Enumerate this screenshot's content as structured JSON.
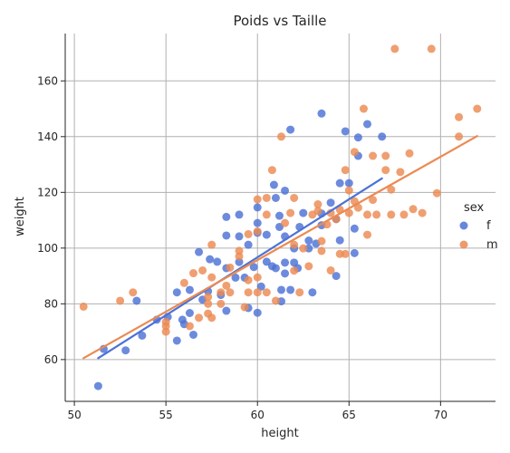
{
  "chart_data": {
    "type": "scatter",
    "title": "Poids vs Taille",
    "xlabel": "height",
    "ylabel": "weight",
    "xlim": [
      49.5,
      73
    ],
    "ylim": [
      45,
      177
    ],
    "xticks": [
      50,
      55,
      60,
      65,
      70
    ],
    "yticks": [
      60,
      80,
      100,
      120,
      140,
      160
    ],
    "grid": true,
    "legend": {
      "title": "sex",
      "placement": "right"
    },
    "series": [
      {
        "name": "f",
        "color": "#4c72d6",
        "regression": {
          "x": [
            51.3,
            66.8
          ],
          "y": [
            60.5,
            125.0
          ]
        },
        "points": [
          [
            51.3,
            50.5
          ],
          [
            51.6,
            63.8
          ],
          [
            52.8,
            63.3
          ],
          [
            53.4,
            81.1
          ],
          [
            53.7,
            68.6
          ],
          [
            54.5,
            74.3
          ],
          [
            55.1,
            75.3
          ],
          [
            55.6,
            66.8
          ],
          [
            55.6,
            84.1
          ],
          [
            55.9,
            74.3
          ],
          [
            56.0,
            72.7
          ],
          [
            56.3,
            76.7
          ],
          [
            56.3,
            85.0
          ],
          [
            56.5,
            68.9
          ],
          [
            56.8,
            98.6
          ],
          [
            57.0,
            81.5
          ],
          [
            57.3,
            84.5
          ],
          [
            57.4,
            96.0
          ],
          [
            57.8,
            95.1
          ],
          [
            58.0,
            83.2
          ],
          [
            58.3,
            77.5
          ],
          [
            58.3,
            92.8
          ],
          [
            58.3,
            104.5
          ],
          [
            58.3,
            111.2
          ],
          [
            58.8,
            89.4
          ],
          [
            59.0,
            95.0
          ],
          [
            59.0,
            104.2
          ],
          [
            59.0,
            112.0
          ],
          [
            59.3,
            89.4
          ],
          [
            59.5,
            101.2
          ],
          [
            59.5,
            78.5
          ],
          [
            59.8,
            93.2
          ],
          [
            60.0,
            114.6
          ],
          [
            60.0,
            109.0
          ],
          [
            60.0,
            105.5
          ],
          [
            60.0,
            76.8
          ],
          [
            60.2,
            86.2
          ],
          [
            60.5,
            104.8
          ],
          [
            60.5,
            95.1
          ],
          [
            60.8,
            93.5
          ],
          [
            60.9,
            122.7
          ],
          [
            61.0,
            92.8
          ],
          [
            61.0,
            118.0
          ],
          [
            61.2,
            111.6
          ],
          [
            61.2,
            107.6
          ],
          [
            61.3,
            85.0
          ],
          [
            61.3,
            80.9
          ],
          [
            61.5,
            94.8
          ],
          [
            61.5,
            104.2
          ],
          [
            61.5,
            120.6
          ],
          [
            61.5,
            90.9
          ],
          [
            61.8,
            142.5
          ],
          [
            61.8,
            85.0
          ],
          [
            62.0,
            94.8
          ],
          [
            62.0,
            99.9
          ],
          [
            62.2,
            92.8
          ],
          [
            62.3,
            107.6
          ],
          [
            62.5,
            112.6
          ],
          [
            62.8,
            99.9
          ],
          [
            62.8,
            102.7
          ],
          [
            63.0,
            84.1
          ],
          [
            63.2,
            101.6
          ],
          [
            63.5,
            148.3
          ],
          [
            63.5,
            112.4
          ],
          [
            63.5,
            108.2
          ],
          [
            64.0,
            116.3
          ],
          [
            64.3,
            110.4
          ],
          [
            64.3,
            90.0
          ],
          [
            64.5,
            102.8
          ],
          [
            64.5,
            123.3
          ],
          [
            64.8,
            141.9
          ],
          [
            65.0,
            123.3
          ],
          [
            65.3,
            98.2
          ],
          [
            65.3,
            107.0
          ],
          [
            65.5,
            139.7
          ],
          [
            65.5,
            133.1
          ],
          [
            66.0,
            144.5
          ],
          [
            66.8,
            140.0
          ]
        ]
      },
      {
        "name": "m",
        "color": "#eb8a52",
        "regression": {
          "x": [
            50.5,
            72.0
          ],
          "y": [
            60.5,
            140.2
          ]
        },
        "points": [
          [
            50.5,
            79.0
          ],
          [
            52.5,
            81.1
          ],
          [
            53.2,
            84.1
          ],
          [
            55.0,
            73.5
          ],
          [
            55.0,
            70.0
          ],
          [
            55.0,
            72.0
          ],
          [
            56.0,
            87.5
          ],
          [
            56.3,
            72.0
          ],
          [
            56.5,
            91.0
          ],
          [
            56.8,
            75.0
          ],
          [
            57.0,
            92.0
          ],
          [
            57.3,
            82.5
          ],
          [
            57.3,
            80.0
          ],
          [
            57.3,
            76.5
          ],
          [
            57.5,
            89.5
          ],
          [
            57.5,
            101.2
          ],
          [
            57.5,
            75.0
          ],
          [
            58.0,
            84.1
          ],
          [
            58.0,
            80.0
          ],
          [
            58.3,
            86.5
          ],
          [
            58.5,
            93.0
          ],
          [
            58.5,
            84.1
          ],
          [
            59.0,
            99.0
          ],
          [
            59.0,
            97.0
          ],
          [
            59.3,
            78.8
          ],
          [
            59.5,
            88.5
          ],
          [
            59.5,
            105.0
          ],
          [
            59.5,
            84.1
          ],
          [
            60.0,
            106.0
          ],
          [
            60.0,
            117.5
          ],
          [
            60.0,
            89.5
          ],
          [
            60.0,
            84.1
          ],
          [
            60.5,
            112.0
          ],
          [
            60.5,
            118.0
          ],
          [
            60.5,
            84.1
          ],
          [
            60.8,
            128.0
          ],
          [
            61.0,
            81.1
          ],
          [
            61.3,
            140.0
          ],
          [
            61.5,
            109.0
          ],
          [
            61.8,
            112.6
          ],
          [
            62.0,
            118.0
          ],
          [
            62.0,
            101.2
          ],
          [
            62.0,
            91.9
          ],
          [
            62.3,
            84.1
          ],
          [
            62.5,
            99.9
          ],
          [
            62.8,
            93.5
          ],
          [
            63.0,
            112.0
          ],
          [
            63.3,
            113.3
          ],
          [
            63.3,
            115.7
          ],
          [
            63.5,
            99.0
          ],
          [
            63.5,
            102.5
          ],
          [
            63.8,
            108.5
          ],
          [
            64.0,
            112.6
          ],
          [
            64.0,
            92.0
          ],
          [
            64.3,
            110.4
          ],
          [
            64.5,
            97.9
          ],
          [
            64.5,
            113.8
          ],
          [
            64.8,
            128.0
          ],
          [
            64.8,
            97.9
          ],
          [
            65.0,
            112.6
          ],
          [
            65.0,
            120.7
          ],
          [
            65.3,
            134.5
          ],
          [
            65.3,
            116.8
          ],
          [
            65.5,
            114.5
          ],
          [
            65.8,
            150.0
          ],
          [
            66.0,
            112.0
          ],
          [
            66.0,
            104.8
          ],
          [
            66.3,
            133.1
          ],
          [
            66.3,
            117.3
          ],
          [
            66.5,
            112.0
          ],
          [
            67.0,
            133.1
          ],
          [
            67.0,
            128.0
          ],
          [
            67.3,
            112.0
          ],
          [
            67.3,
            121.0
          ],
          [
            67.5,
            171.5
          ],
          [
            67.8,
            127.3
          ],
          [
            68.0,
            112.0
          ],
          [
            68.3,
            134.0
          ],
          [
            68.5,
            114.0
          ],
          [
            69.0,
            112.6
          ],
          [
            69.5,
            171.5
          ],
          [
            69.8,
            119.7
          ],
          [
            71.0,
            147.0
          ],
          [
            71.0,
            140.0
          ],
          [
            72.0,
            150.0
          ]
        ]
      }
    ]
  }
}
